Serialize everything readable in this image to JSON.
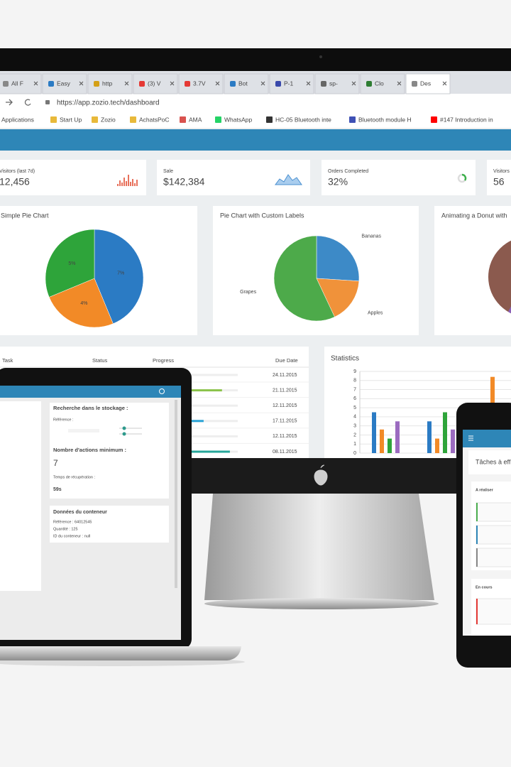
{
  "browser": {
    "tabs": [
      "All F",
      "Easy",
      "http",
      "(3) V",
      "3.7V",
      "Bot",
      "P-1",
      "sp-",
      "Clo",
      "Des"
    ],
    "url": "https://app.zozio.tech/dashboard",
    "bookmarks": [
      "Applications",
      "Start Up",
      "Zozio",
      "AchatsPoC",
      "AMA",
      "WhatsApp",
      "HC-05 Bluetooth inte",
      "Bluetooth module H",
      "#147 Introduction in"
    ]
  },
  "stats_cards": [
    {
      "label": "Visitors (last 7d)",
      "value": "12,456"
    },
    {
      "label": "Sale",
      "value": "$142,384"
    },
    {
      "label": "Orders Completed",
      "value": "32%"
    },
    {
      "label": "Visitors",
      "value": "56"
    }
  ],
  "donut_title": "Animating a Donut with",
  "table": {
    "headers": [
      "Task",
      "Status",
      "Progress",
      "Due Date"
    ],
    "rows": [
      {
        "progress": 30,
        "due": "24.11.2015"
      },
      {
        "progress": 88,
        "due": "21.11.2015"
      },
      {
        "progress": 40,
        "due": "12.11.2015"
      },
      {
        "progress": 74,
        "due": "17.11.2015"
      },
      {
        "progress": 55,
        "due": "12.11.2015"
      },
      {
        "progress": 94,
        "due": "08.11.2015"
      }
    ]
  },
  "chart_data": [
    {
      "type": "pie",
      "title": "Simple Pie Chart",
      "values": [
        7,
        4,
        5
      ],
      "value_labels": [
        "7%",
        "4%",
        "5%"
      ],
      "colors": [
        "#2b7bc4",
        "#f28a27",
        "#2ea43a"
      ]
    },
    {
      "type": "pie",
      "title": "Pie Chart with Custom Labels",
      "categories": [
        "Bananas",
        "Apples",
        "Grapes"
      ],
      "values": [
        26,
        17,
        57
      ],
      "colors": [
        "#3d8ac7",
        "#f0923a",
        "#4daa4a"
      ]
    },
    {
      "type": "bar",
      "title": "Statistics",
      "categories": [
        null,
        null,
        null
      ],
      "series": [
        {
          "color": "#2b7bc4",
          "values": [
            4.5,
            3.5,
            null
          ]
        },
        {
          "color": "#f28a27",
          "values": [
            2.6,
            1.6,
            8.4
          ]
        },
        {
          "color": "#2ea43a",
          "values": [
            1.6,
            4.5,
            null
          ]
        },
        {
          "color": "#9b6bc0",
          "values": [
            3.5,
            2.6,
            null
          ]
        }
      ],
      "ylim": [
        0,
        9
      ],
      "yticks": [
        0,
        1,
        2,
        3,
        4,
        5,
        6,
        7,
        8,
        9
      ],
      "grid": true
    }
  ],
  "laptop": {
    "search_title": "Recherche dans le stockage :",
    "reference_label": "Référence :",
    "min_actions_title": "Nombre d'actions minimum :",
    "min_actions_value": "7",
    "recovery_label": "Temps de récupération :",
    "recovery_value": "59s",
    "container_title": "Données du conteneur",
    "container_lines": [
      "Référence : 64012545",
      "Quantité : 125",
      "ID du conteneur : null"
    ]
  },
  "phone": {
    "title": "Tâches à eff",
    "sections": [
      "A réaliser",
      "En cours"
    ]
  }
}
